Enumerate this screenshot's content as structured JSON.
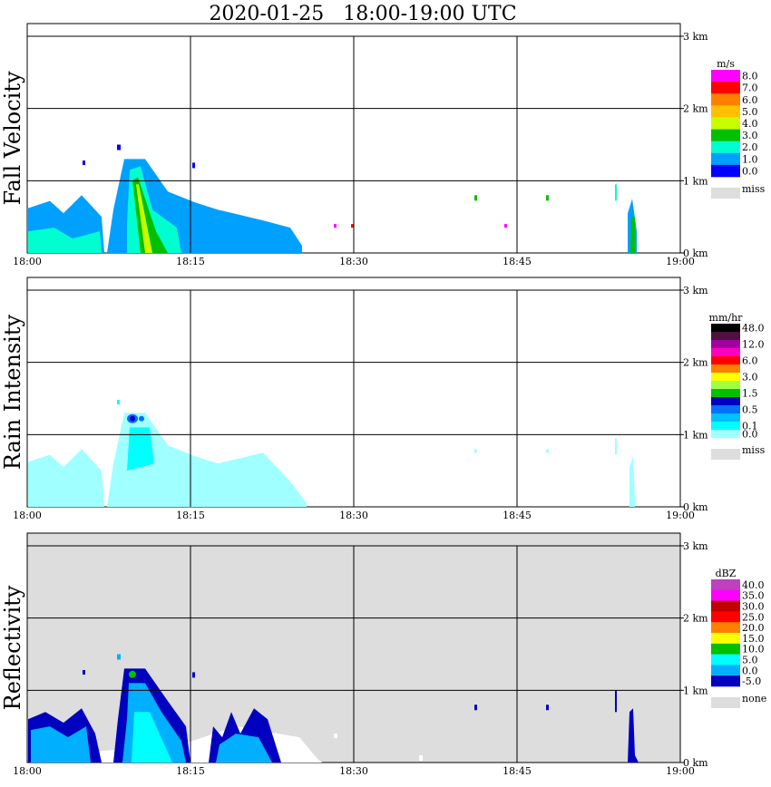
{
  "chart_data": {
    "type": "heatmap",
    "title": "2020-01-25   18:00-19:00 UTC",
    "x_ticks": [
      "18:00",
      "18:15",
      "18:30",
      "18:45",
      "19:00"
    ],
    "y_ticks": [
      "0 km",
      "1 km",
      "2 km",
      "3 km"
    ],
    "panels": [
      {
        "id": "fall-velocity",
        "ylabel": "Fall Velocity",
        "unit": "m/s",
        "background": "#ffffff",
        "legend": [
          {
            "label": "8.0",
            "color": "#ff00ff"
          },
          {
            "label": "7.0",
            "color": "#ff0000"
          },
          {
            "label": "6.0",
            "color": "#ff8000"
          },
          {
            "label": "5.0",
            "color": "#ffc000"
          },
          {
            "label": "4.0",
            "color": "#c8ff00"
          },
          {
            "label": "3.0",
            "color": "#00c000"
          },
          {
            "label": "2.0",
            "color": "#00ffd0"
          },
          {
            "label": "1.0",
            "color": "#00a0ff"
          },
          {
            "label": "0.0",
            "color": "#0000ff"
          }
        ],
        "miss_label": "miss",
        "miss_color": "#dddddd"
      },
      {
        "id": "rain-intensity",
        "ylabel": "Rain Intensity",
        "unit": "mm/hr",
        "background": "#ffffff",
        "legend": [
          {
            "label": "48.0",
            "color": "#000000"
          },
          {
            "label": "",
            "color": "#501040"
          },
          {
            "label": "12.0",
            "color": "#a000a0"
          },
          {
            "label": "",
            "color": "#ff00c0"
          },
          {
            "label": "6.0",
            "color": "#ff0000"
          },
          {
            "label": "",
            "color": "#ff8000"
          },
          {
            "label": "3.0",
            "color": "#ffff00"
          },
          {
            "label": "",
            "color": "#a0ff40"
          },
          {
            "label": "1.5",
            "color": "#00c000"
          },
          {
            "label": "",
            "color": "#0000c0"
          },
          {
            "label": "0.5",
            "color": "#0070ff"
          },
          {
            "label": "",
            "color": "#00c0ff"
          },
          {
            "label": "0.1",
            "color": "#00ffff"
          },
          {
            "label": "0.0",
            "color": "#a0ffff"
          }
        ],
        "miss_label": "miss",
        "miss_color": "#dddddd"
      },
      {
        "id": "reflectivity",
        "ylabel": "Reflectivity",
        "unit": "dBZ",
        "background": "#dddddd",
        "legend": [
          {
            "label": "40.0",
            "color": "#c040c0"
          },
          {
            "label": "35.0",
            "color": "#ff00ff"
          },
          {
            "label": "30.0",
            "color": "#c00000"
          },
          {
            "label": "25.0",
            "color": "#ff0000"
          },
          {
            "label": "20.0",
            "color": "#ff8000"
          },
          {
            "label": "15.0",
            "color": "#ffff00"
          },
          {
            "label": "10.0",
            "color": "#00c000"
          },
          {
            "label": "5.0",
            "color": "#00ffff"
          },
          {
            "label": "0.0",
            "color": "#00b0ff"
          },
          {
            "label": "-5.0",
            "color": "#0000c0"
          }
        ],
        "miss_label": "none",
        "miss_color": "#dddddd"
      }
    ]
  }
}
